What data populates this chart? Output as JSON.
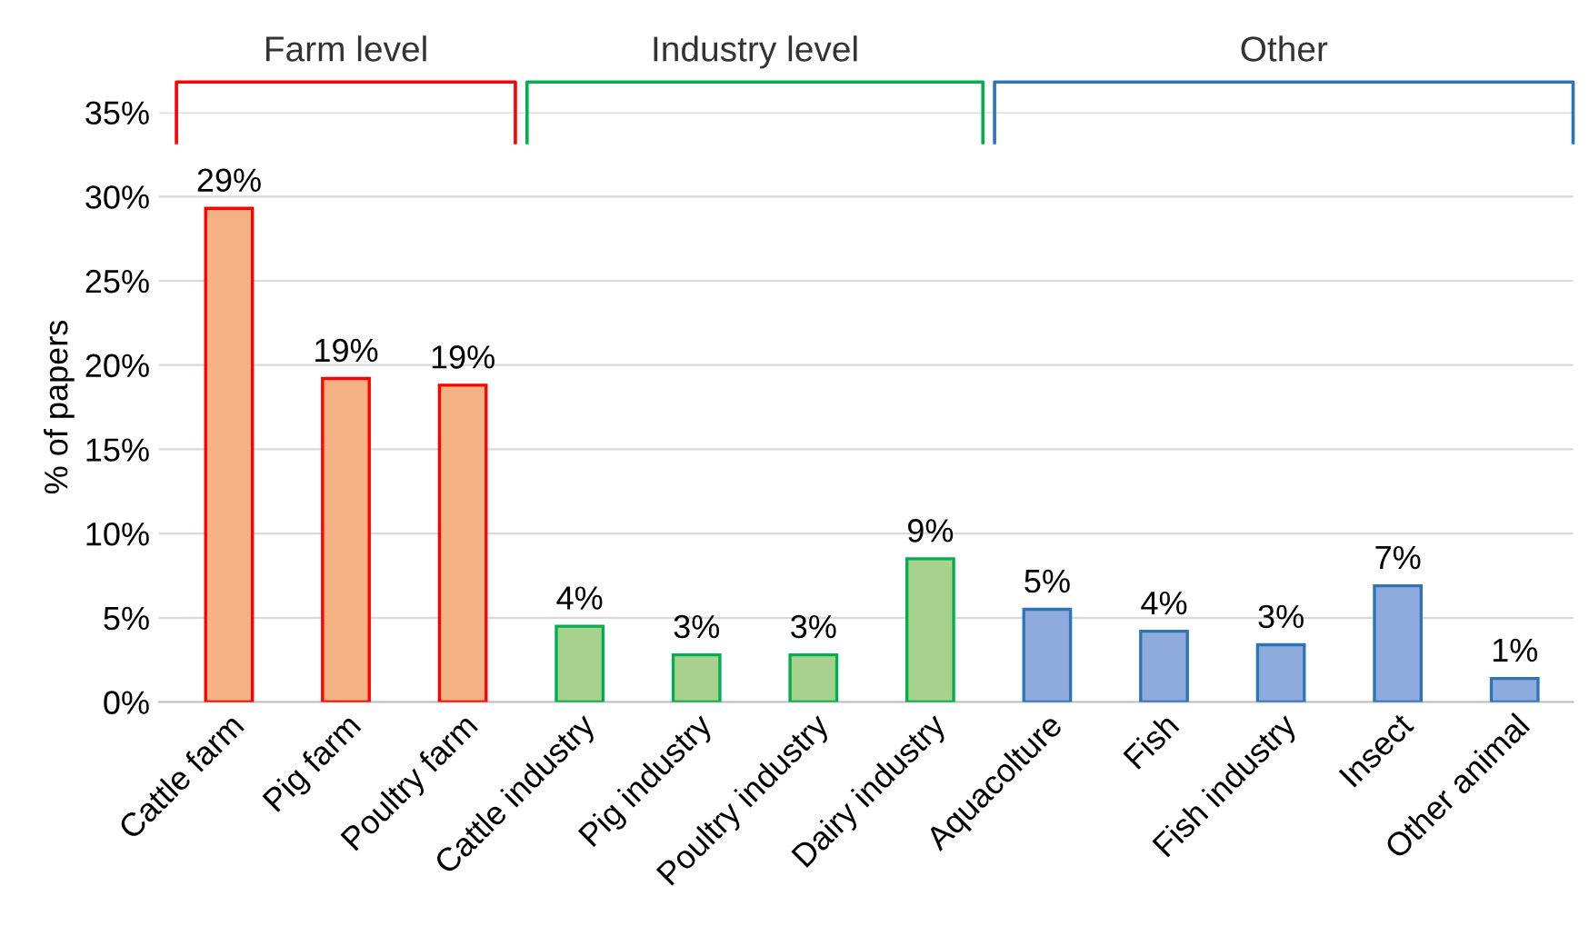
{
  "chart_data": {
    "type": "bar",
    "ylabel": "% of papers",
    "categories": [
      "Cattle farm",
      "Pig farm",
      "Poultry farm",
      "Cattle industry",
      "Pig industry",
      "Poultry industry",
      "Dairy industry",
      "Aquacolture",
      "Fish",
      "Fish industry",
      "Insect",
      "Other animal"
    ],
    "series": [
      {
        "color": "#f4b183",
        "values": [
          29.3,
          19.2,
          18.8,
          null,
          null,
          null,
          null,
          null,
          null,
          null,
          null,
          null
        ],
        "value_labels": [
          "29%",
          "19%",
          "19%",
          null,
          null,
          null,
          null,
          null,
          null,
          null,
          null,
          null
        ]
      },
      {
        "color": "#a9d18e",
        "values": [
          null,
          null,
          null,
          4.5,
          2.8,
          2.8,
          8.5,
          null,
          null,
          null,
          null,
          null
        ],
        "value_labels": [
          null,
          null,
          null,
          "4%",
          "3%",
          "3%",
          "9%",
          null,
          null,
          null,
          null,
          null
        ]
      },
      {
        "color": "#8faadc",
        "values": [
          null,
          null,
          null,
          null,
          null,
          null,
          null,
          5.5,
          4.2,
          3.4,
          6.9,
          1.4
        ],
        "value_labels": [
          null,
          null,
          null,
          null,
          null,
          null,
          null,
          "5%",
          "4%",
          "3%",
          "7%",
          "1%"
        ]
      }
    ],
    "annotations": [
      "Farm level",
      "Industry level",
      "Other"
    ],
    "ylim": [
      0,
      35
    ],
    "yticks": [
      {
        "value": 0,
        "label": "0%"
      },
      {
        "value": 5,
        "label": "5%"
      },
      {
        "value": 10,
        "label": "10%"
      },
      {
        "value": 15,
        "label": "15%"
      },
      {
        "value": 20,
        "label": "20%"
      },
      {
        "value": 25,
        "label": "25%"
      },
      {
        "value": 30,
        "label": "30%"
      },
      {
        "value": 35,
        "label": "35%"
      }
    ],
    "grid": "y",
    "legend": false
  }
}
